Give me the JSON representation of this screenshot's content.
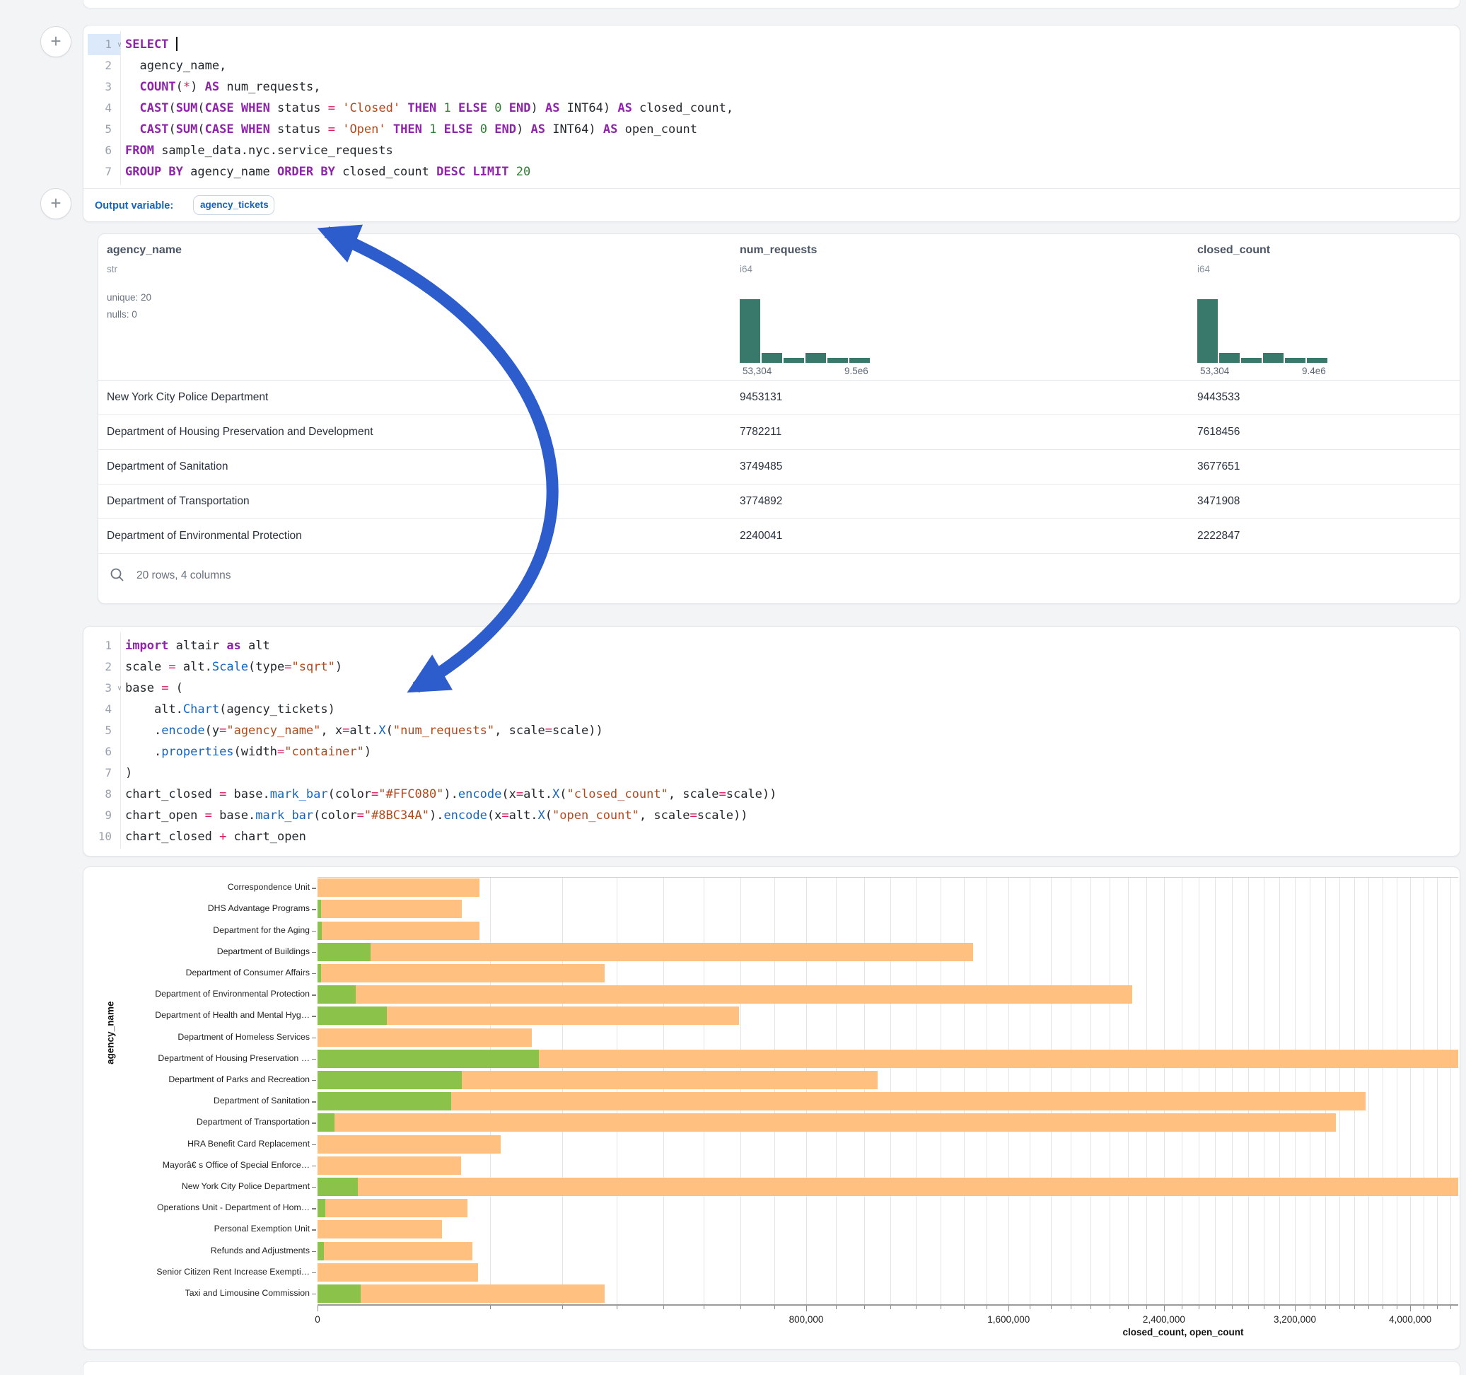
{
  "ui": {
    "plus_label": "+",
    "arrow_color": "#2d5ccd",
    "output_variable_label": "Output variable:",
    "output_variable_value": "agency_tickets"
  },
  "sql_cell": {
    "lines": [
      {
        "num": "1",
        "chev": true,
        "caret": true,
        "segs": [
          [
            "k",
            "SELECT"
          ],
          [
            "p",
            " "
          ]
        ]
      },
      {
        "num": "2",
        "segs": [
          [
            "p",
            "  agency_name,"
          ]
        ]
      },
      {
        "num": "3",
        "segs": [
          [
            "p",
            "  "
          ],
          [
            "k",
            "COUNT"
          ],
          [
            "p",
            "("
          ],
          [
            "o",
            "*"
          ],
          [
            "p",
            ") "
          ],
          [
            "k",
            "AS"
          ],
          [
            "p",
            " num_requests,"
          ]
        ]
      },
      {
        "num": "4",
        "segs": [
          [
            "p",
            "  "
          ],
          [
            "k",
            "CAST"
          ],
          [
            "p",
            "("
          ],
          [
            "k",
            "SUM"
          ],
          [
            "p",
            "("
          ],
          [
            "k",
            "CASE"
          ],
          [
            "p",
            " "
          ],
          [
            "k",
            "WHEN"
          ],
          [
            "p",
            " status "
          ],
          [
            "o",
            "="
          ],
          [
            "p",
            " "
          ],
          [
            "s",
            "'Closed'"
          ],
          [
            "p",
            " "
          ],
          [
            "k",
            "THEN"
          ],
          [
            "p",
            " "
          ],
          [
            "n",
            "1"
          ],
          [
            "p",
            " "
          ],
          [
            "k",
            "ELSE"
          ],
          [
            "p",
            " "
          ],
          [
            "n",
            "0"
          ],
          [
            "p",
            " "
          ],
          [
            "k",
            "END"
          ],
          [
            "p",
            ") "
          ],
          [
            "k",
            "AS"
          ],
          [
            "p",
            " INT64) "
          ],
          [
            "k",
            "AS"
          ],
          [
            "p",
            " closed_count,"
          ]
        ]
      },
      {
        "num": "5",
        "segs": [
          [
            "p",
            "  "
          ],
          [
            "k",
            "CAST"
          ],
          [
            "p",
            "("
          ],
          [
            "k",
            "SUM"
          ],
          [
            "p",
            "("
          ],
          [
            "k",
            "CASE"
          ],
          [
            "p",
            " "
          ],
          [
            "k",
            "WHEN"
          ],
          [
            "p",
            " status "
          ],
          [
            "o",
            "="
          ],
          [
            "p",
            " "
          ],
          [
            "s",
            "'Open'"
          ],
          [
            "p",
            " "
          ],
          [
            "k",
            "THEN"
          ],
          [
            "p",
            " "
          ],
          [
            "n",
            "1"
          ],
          [
            "p",
            " "
          ],
          [
            "k",
            "ELSE"
          ],
          [
            "p",
            " "
          ],
          [
            "n",
            "0"
          ],
          [
            "p",
            " "
          ],
          [
            "k",
            "END"
          ],
          [
            "p",
            ") "
          ],
          [
            "k",
            "AS"
          ],
          [
            "p",
            " INT64) "
          ],
          [
            "k",
            "AS"
          ],
          [
            "p",
            " open_count"
          ]
        ]
      },
      {
        "num": "6",
        "segs": [
          [
            "k",
            "FROM"
          ],
          [
            "p",
            " sample_data.nyc.service_requests"
          ]
        ]
      },
      {
        "num": "7",
        "segs": [
          [
            "k",
            "GROUP BY"
          ],
          [
            "p",
            " agency_name "
          ],
          [
            "k",
            "ORDER BY"
          ],
          [
            "p",
            " closed_count "
          ],
          [
            "k",
            "DESC"
          ],
          [
            "p",
            " "
          ],
          [
            "k",
            "LIMIT"
          ],
          [
            "p",
            " "
          ],
          [
            "n",
            "20"
          ]
        ]
      }
    ]
  },
  "table": {
    "columns": [
      {
        "name": "agency_name",
        "type": "str",
        "meta": [
          "unique: 20",
          "nulls: 0"
        ]
      },
      {
        "name": "num_requests",
        "type": "i64",
        "hist": {
          "heights": [
            1,
            0.16,
            0.08,
            0.16,
            0.08,
            0.08
          ],
          "min_label": "53,304",
          "max_label": "9.5e6"
        }
      },
      {
        "name": "closed_count",
        "type": "i64",
        "hist": {
          "heights": [
            1,
            0.16,
            0.08,
            0.16,
            0.08,
            0.08
          ],
          "min_label": "53,304",
          "max_label": "9.4e6"
        }
      }
    ],
    "rows": [
      [
        "New York City Police Department",
        "9453131",
        "9443533"
      ],
      [
        "Department of Housing Preservation and Development",
        "7782211",
        "7618456"
      ],
      [
        "Department of Sanitation",
        "3749485",
        "3677651"
      ],
      [
        "Department of Transportation",
        "3774892",
        "3471908"
      ],
      [
        "Department of Environmental Protection",
        "2240041",
        "2222847"
      ]
    ],
    "footer": "20 rows, 4 columns"
  },
  "py_cell": {
    "lines": [
      {
        "num": "1",
        "segs": [
          [
            "k",
            "import"
          ],
          [
            "p",
            " altair "
          ],
          [
            "k",
            "as"
          ],
          [
            "p",
            " alt"
          ]
        ]
      },
      {
        "num": "2",
        "segs": [
          [
            "p",
            "scale "
          ],
          [
            "o",
            "="
          ],
          [
            "p",
            " alt."
          ],
          [
            "f",
            "Scale"
          ],
          [
            "p",
            "(type"
          ],
          [
            "o",
            "="
          ],
          [
            "s",
            "\"sqrt\""
          ],
          [
            "p",
            ")"
          ]
        ]
      },
      {
        "num": "3",
        "chev": true,
        "segs": [
          [
            "p",
            "base "
          ],
          [
            "o",
            "="
          ],
          [
            "p",
            " ("
          ]
        ]
      },
      {
        "num": "4",
        "segs": [
          [
            "p",
            "    alt."
          ],
          [
            "f",
            "Chart"
          ],
          [
            "p",
            "(agency_tickets)"
          ]
        ]
      },
      {
        "num": "5",
        "segs": [
          [
            "p",
            "    ."
          ],
          [
            "f",
            "encode"
          ],
          [
            "p",
            "(y"
          ],
          [
            "o",
            "="
          ],
          [
            "s",
            "\"agency_name\""
          ],
          [
            "p",
            ", x"
          ],
          [
            "o",
            "="
          ],
          [
            "p",
            "alt."
          ],
          [
            "f",
            "X"
          ],
          [
            "p",
            "("
          ],
          [
            "s",
            "\"num_requests\""
          ],
          [
            "p",
            ", scale"
          ],
          [
            "o",
            "="
          ],
          [
            "p",
            "scale))"
          ]
        ]
      },
      {
        "num": "6",
        "segs": [
          [
            "p",
            "    ."
          ],
          [
            "f",
            "properties"
          ],
          [
            "p",
            "(width"
          ],
          [
            "o",
            "="
          ],
          [
            "s",
            "\"container\""
          ],
          [
            "p",
            ")"
          ]
        ]
      },
      {
        "num": "7",
        "segs": [
          [
            "p",
            ")"
          ]
        ]
      },
      {
        "num": "8",
        "segs": [
          [
            "p",
            "chart_closed "
          ],
          [
            "o",
            "="
          ],
          [
            "p",
            " base."
          ],
          [
            "f",
            "mark_bar"
          ],
          [
            "p",
            "(color"
          ],
          [
            "o",
            "="
          ],
          [
            "s",
            "\"#FFC080\""
          ],
          [
            "p",
            ")."
          ],
          [
            "f",
            "encode"
          ],
          [
            "p",
            "(x"
          ],
          [
            "o",
            "="
          ],
          [
            "p",
            "alt."
          ],
          [
            "f",
            "X"
          ],
          [
            "p",
            "("
          ],
          [
            "s",
            "\"closed_count\""
          ],
          [
            "p",
            ", scale"
          ],
          [
            "o",
            "="
          ],
          [
            "p",
            "scale))"
          ]
        ]
      },
      {
        "num": "9",
        "segs": [
          [
            "p",
            "chart_open "
          ],
          [
            "o",
            "="
          ],
          [
            "p",
            " base."
          ],
          [
            "f",
            "mark_bar"
          ],
          [
            "p",
            "(color"
          ],
          [
            "o",
            "="
          ],
          [
            "s",
            "\"#8BC34A\""
          ],
          [
            "p",
            ")."
          ],
          [
            "f",
            "encode"
          ],
          [
            "p",
            "(x"
          ],
          [
            "o",
            "="
          ],
          [
            "p",
            "alt."
          ],
          [
            "f",
            "X"
          ],
          [
            "p",
            "("
          ],
          [
            "s",
            "\"open_count\""
          ],
          [
            "p",
            ", scale"
          ],
          [
            "o",
            "="
          ],
          [
            "p",
            "scale))"
          ]
        ]
      },
      {
        "num": "10",
        "segs": [
          [
            "p",
            "chart_closed "
          ],
          [
            "o",
            "+"
          ],
          [
            "p",
            " chart_open"
          ]
        ]
      }
    ]
  },
  "chart_data": {
    "type": "bar",
    "orientation": "horizontal",
    "x_scale": "sqrt",
    "title": "",
    "xlabel": "closed_count, open_count",
    "ylabel": "agency_name",
    "grid": true,
    "legend": "none",
    "categories": [
      "Correspondence Unit",
      "DHS Advantage Programs",
      "Department for the Aging",
      "Department of Buildings",
      "Department of Consumer Affairs",
      "Department of Environmental Protection",
      "Department of Health and Mental Hyg…",
      "Department of Homeless Services",
      "Department of Housing Preservation …",
      "Department of Parks and Recreation",
      "Department of Sanitation",
      "Department of Transportation",
      "HRA Benefit Card Replacement",
      "Mayorâ€ s Office of Special Enforce…",
      "New York City Police Department",
      "Operations Unit - Department of Hom…",
      "Personal Exemption Unit",
      "Refunds and Adjustments",
      "Senior Citizen Rent Increase Exempti…",
      "Taxi and Limousine Commission"
    ],
    "series": [
      {
        "name": "closed_count",
        "color": "#FFC080",
        "values": [
          88000,
          70000,
          88000,
          1440000,
          276000,
          2222847,
          595000,
          154000,
          7618456,
          1050000,
          3677651,
          3471908,
          112000,
          69000,
          9443533,
          75000,
          52000,
          80000,
          86000,
          276000
        ]
      },
      {
        "name": "open_count",
        "color": "#8BC34A",
        "values": [
          0,
          40,
          60,
          9500,
          40,
          4900,
          16000,
          0,
          163755,
          70000,
          60000,
          1000,
          0,
          0,
          5500,
          200,
          0,
          150,
          0,
          6200
        ]
      }
    ],
    "x_ticks": [
      0,
      800000,
      1600000,
      2400000,
      3200000,
      4000000
    ],
    "x_tick_labels": [
      "0",
      "800,000",
      "1,600,000",
      "2,400,000",
      "3,200,000",
      "4,000,000"
    ],
    "minor_tick_step": 100000,
    "x_domain_visible_max": 4360000
  }
}
